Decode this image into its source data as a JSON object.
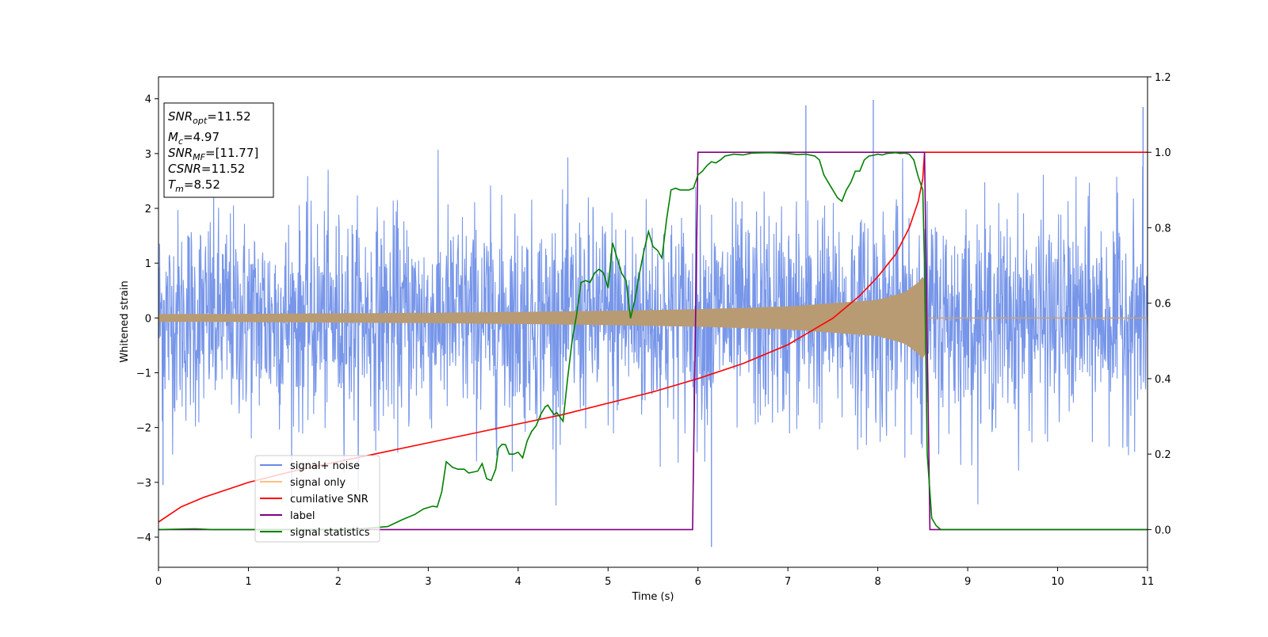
{
  "chart_data": {
    "type": "line",
    "xlabel": "Time (s)",
    "ylabel": "Whitened strain",
    "xlim": [
      0,
      11
    ],
    "ylim_left": [
      -4.55,
      4.4
    ],
    "ylim_right": [
      -0.1,
      1.2
    ],
    "grid": false,
    "x_ticks": [
      0,
      1,
      2,
      3,
      4,
      5,
      6,
      7,
      8,
      9,
      10,
      11
    ],
    "y_ticks_left": [
      -4,
      -3,
      -2,
      -1,
      0,
      1,
      2,
      3,
      4
    ],
    "y_ticks_right": [
      0.0,
      0.2,
      0.4,
      0.6,
      0.8,
      1.0,
      1.2
    ],
    "info_box": {
      "snr_opt": {
        "symbol": "SNR",
        "subscript": "opt",
        "value": "=11.52"
      },
      "mc": {
        "symbol": "M",
        "subscript": "c",
        "value": "=4.97"
      },
      "snr_mf": {
        "symbol": "SNR",
        "subscript": "MF",
        "value": "=[11.77]"
      },
      "csnr": {
        "symbol": "CSNR",
        "value": "=11.52"
      },
      "tm": {
        "symbol": "T",
        "subscript": "m",
        "value": "=8.52"
      }
    },
    "legend": {
      "placement": "lower-left",
      "entries": [
        {
          "label": "signal+ noise",
          "color": "#6b8ae6"
        },
        {
          "label": "signal only",
          "color": "#ffbf80"
        },
        {
          "label": "cumilative SNR",
          "color": "#ff0000"
        },
        {
          "label": "label",
          "color": "#800080"
        },
        {
          "label": "signal statistics",
          "color": "#008000"
        }
      ]
    },
    "series": [
      {
        "name": "signal+ noise",
        "axis": "left",
        "color": "#7090e8",
        "x_range": [
          0,
          11
        ],
        "noise_std": 1.0,
        "notable_peaks": [
          {
            "x": 7.2,
            "y": 3.88
          },
          {
            "x": 7.95,
            "y": 3.98
          },
          {
            "x": 10.95,
            "y": 3.85
          },
          {
            "x": 6.15,
            "y": -4.18
          },
          {
            "x": 0.05,
            "y": -3.05
          }
        ]
      },
      {
        "name": "signal only",
        "axis": "left",
        "color": "#ffbf80",
        "description_points": {
          "x": [
            0,
            1,
            2,
            3,
            4,
            5,
            6,
            7,
            8,
            8.3,
            8.45,
            8.52,
            8.55,
            11
          ],
          "amplitude": [
            0.07,
            0.075,
            0.085,
            0.095,
            0.11,
            0.13,
            0.16,
            0.21,
            0.33,
            0.47,
            0.65,
            0.8,
            0,
            0
          ]
        }
      },
      {
        "name": "cumilative SNR",
        "axis": "right",
        "color": "#ff0000",
        "x": [
          0,
          0.25,
          0.5,
          1,
          1.5,
          2,
          2.5,
          3,
          3.5,
          4,
          4.5,
          5,
          5.5,
          6,
          6.5,
          7,
          7.5,
          7.8,
          8.0,
          8.2,
          8.35,
          8.45,
          8.5,
          8.52,
          8.55,
          11
        ],
        "values": [
          0.02,
          0.06,
          0.085,
          0.125,
          0.155,
          0.18,
          0.205,
          0.23,
          0.255,
          0.28,
          0.305,
          0.335,
          0.365,
          0.4,
          0.44,
          0.49,
          0.56,
          0.62,
          0.67,
          0.73,
          0.8,
          0.87,
          0.93,
          1.0,
          1.0,
          1.0
        ]
      },
      {
        "name": "label",
        "axis": "right",
        "color": "#800080",
        "x": [
          0,
          5.94,
          6.0,
          8.52,
          8.58,
          11
        ],
        "values": [
          0,
          0,
          1,
          1,
          0,
          0
        ]
      },
      {
        "name": "signal statistics",
        "axis": "right",
        "color": "#008000",
        "x": [
          0,
          0.4,
          0.6,
          1.0,
          1.5,
          2.0,
          2.3,
          2.55,
          2.7,
          2.85,
          2.95,
          3.05,
          3.1,
          3.15,
          3.2,
          3.27,
          3.33,
          3.4,
          3.45,
          3.55,
          3.6,
          3.65,
          3.7,
          3.75,
          3.78,
          3.82,
          3.86,
          3.9,
          3.95,
          4.0,
          4.05,
          4.1,
          4.15,
          4.2,
          4.25,
          4.3,
          4.33,
          4.36,
          4.4,
          4.43,
          4.47,
          4.5,
          4.55,
          4.6,
          4.65,
          4.7,
          4.75,
          4.8,
          4.85,
          4.9,
          4.95,
          5.0,
          5.05,
          5.1,
          5.15,
          5.2,
          5.25,
          5.3,
          5.35,
          5.4,
          5.45,
          5.5,
          5.55,
          5.6,
          5.65,
          5.7,
          5.75,
          5.8,
          5.85,
          5.9,
          5.95,
          6.0,
          6.05,
          6.1,
          6.15,
          6.2,
          6.25,
          6.3,
          6.4,
          6.5,
          6.6,
          6.8,
          7.0,
          7.1,
          7.2,
          7.3,
          7.35,
          7.4,
          7.45,
          7.5,
          7.55,
          7.6,
          7.65,
          7.7,
          7.75,
          7.8,
          7.85,
          7.9,
          7.95,
          8.0,
          8.05,
          8.1,
          8.15,
          8.2,
          8.25,
          8.3,
          8.35,
          8.4,
          8.45,
          8.5,
          8.52,
          8.55,
          8.6,
          8.65,
          8.7,
          8.8,
          9.0,
          11
        ],
        "values": [
          0.0,
          0.002,
          0.0,
          0.0,
          0.0,
          0.0,
          0.003,
          0.008,
          0.025,
          0.04,
          0.055,
          0.062,
          0.06,
          0.1,
          0.18,
          0.165,
          0.16,
          0.16,
          0.15,
          0.155,
          0.175,
          0.135,
          0.13,
          0.16,
          0.215,
          0.226,
          0.225,
          0.2,
          0.2,
          0.205,
          0.19,
          0.235,
          0.26,
          0.275,
          0.305,
          0.325,
          0.33,
          0.318,
          0.305,
          0.31,
          0.297,
          0.287,
          0.4,
          0.5,
          0.57,
          0.655,
          0.66,
          0.655,
          0.68,
          0.69,
          0.68,
          0.64,
          0.76,
          0.72,
          0.68,
          0.66,
          0.56,
          0.61,
          0.68,
          0.74,
          0.79,
          0.75,
          0.74,
          0.72,
          0.82,
          0.9,
          0.905,
          0.9,
          0.9,
          0.9,
          0.905,
          0.94,
          0.95,
          0.965,
          0.975,
          0.972,
          0.98,
          0.99,
          0.995,
          0.993,
          0.998,
          0.999,
          0.997,
          0.994,
          0.995,
          0.99,
          0.98,
          0.94,
          0.92,
          0.9,
          0.88,
          0.87,
          0.9,
          0.92,
          0.95,
          0.95,
          0.98,
          0.99,
          0.992,
          0.995,
          0.993,
          0.997,
          0.998,
          0.999,
          0.997,
          0.998,
          0.995,
          0.98,
          0.935,
          0.9,
          0.7,
          0.2,
          0.03,
          0.01,
          0.0,
          0.0,
          0.0,
          0.0
        ]
      }
    ]
  }
}
